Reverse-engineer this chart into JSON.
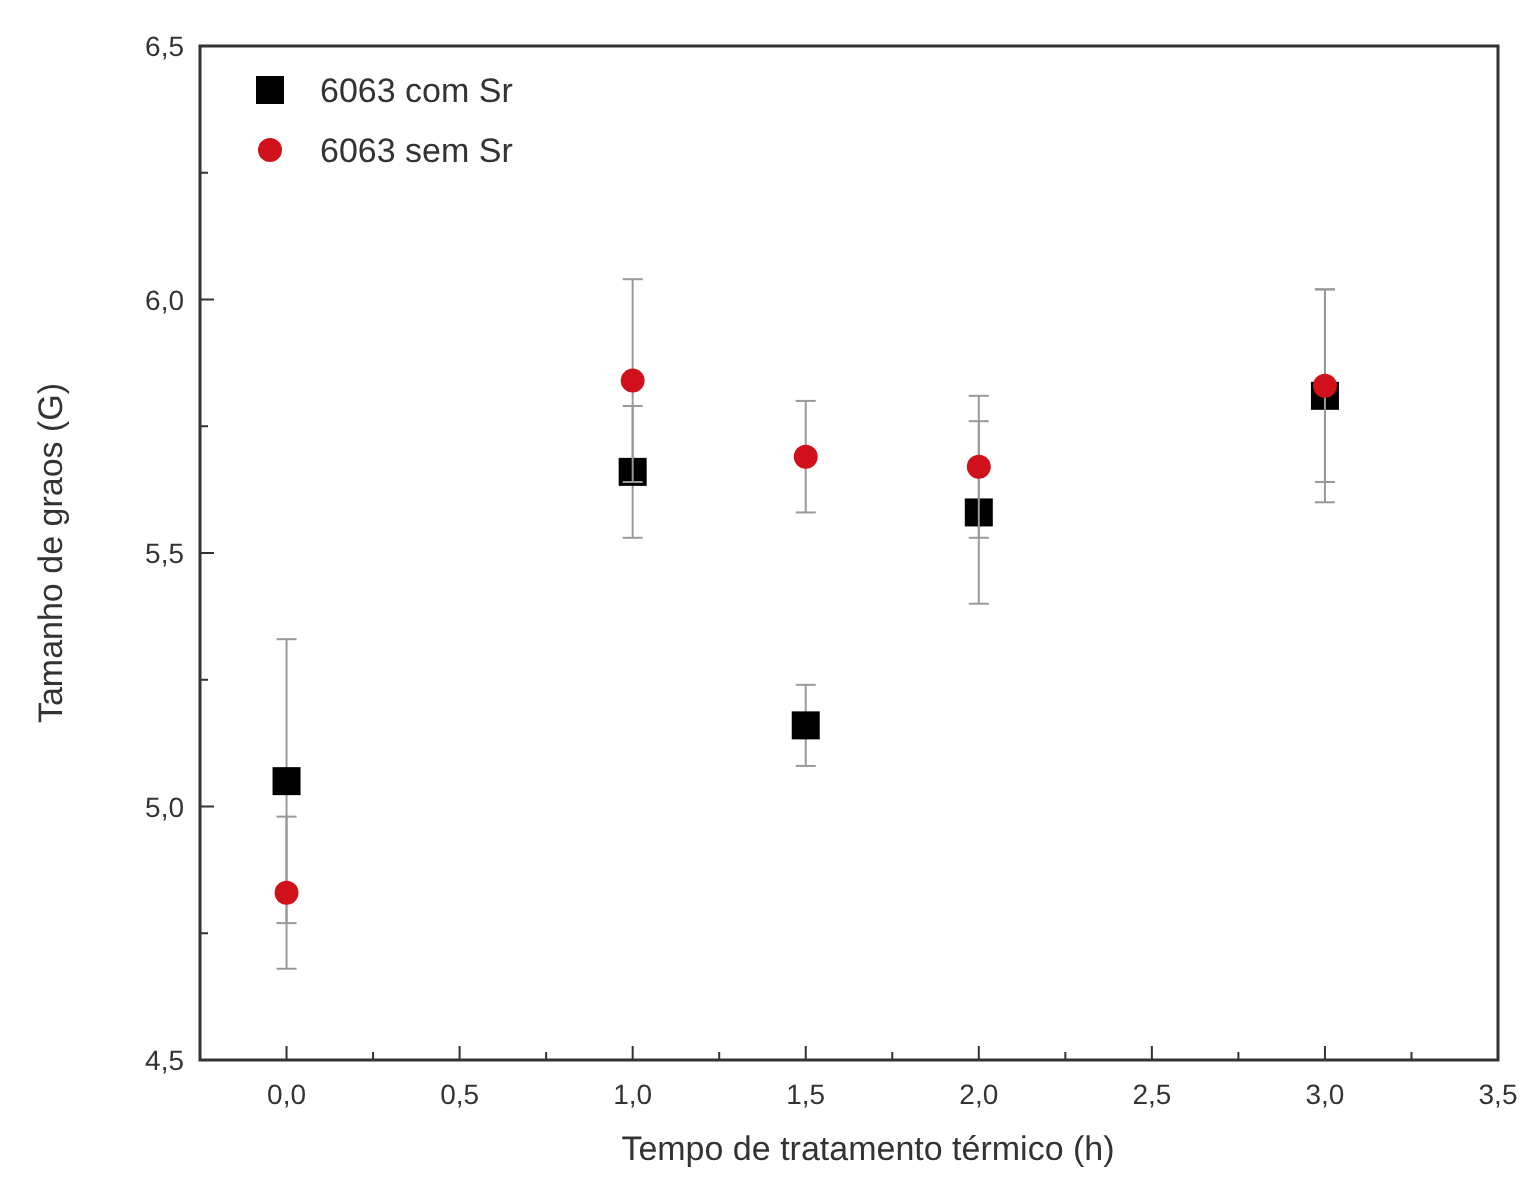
{
  "chart_data": {
    "type": "scatter",
    "xlabel": "Tempo de tratamento térmico (h)",
    "ylabel": "Tamanho de graos (G)",
    "xlim": [
      -0.25,
      3.5
    ],
    "ylim": [
      4.5,
      6.5
    ],
    "xticks": [
      {
        "value": 0,
        "label": "0,0"
      },
      {
        "value": 0.25,
        "label": null
      },
      {
        "value": 0.5,
        "label": "0,5"
      },
      {
        "value": 0.75,
        "label": null
      },
      {
        "value": 1,
        "label": "1,0"
      },
      {
        "value": 1.25,
        "label": null
      },
      {
        "value": 1.5,
        "label": "1,5"
      },
      {
        "value": 1.75,
        "label": null
      },
      {
        "value": 2,
        "label": "2,0"
      },
      {
        "value": 2.25,
        "label": null
      },
      {
        "value": 2.5,
        "label": "2,5"
      },
      {
        "value": 2.75,
        "label": null
      },
      {
        "value": 3,
        "label": "3,0"
      },
      {
        "value": 3.25,
        "label": null
      },
      {
        "value": 3.5,
        "label": "3,5"
      }
    ],
    "yticks": [
      {
        "value": 4.5,
        "label": "4,5"
      },
      {
        "value": 4.75,
        "label": null
      },
      {
        "value": 5,
        "label": "5,0"
      },
      {
        "value": 5.25,
        "label": null
      },
      {
        "value": 5.5,
        "label": "5,5"
      },
      {
        "value": 5.75,
        "label": null
      },
      {
        "value": 6,
        "label": "6,0"
      },
      {
        "value": 6.25,
        "label": null
      },
      {
        "value": 6.5,
        "label": "6,5"
      }
    ],
    "legend": "top left",
    "grid": false,
    "series": [
      {
        "name": "6063 com Sr",
        "color": "#000000",
        "marker": "square",
        "x": [
          0,
          1,
          1.5,
          2,
          3
        ],
        "values": [
          5.05,
          5.66,
          5.16,
          5.58,
          5.81
        ],
        "errors": [
          [
            4.77,
            5.33
          ],
          [
            5.53,
            5.79
          ],
          [
            5.08,
            5.24
          ],
          [
            5.4,
            5.76
          ],
          [
            5.6,
            6.02
          ]
        ]
      },
      {
        "name": "6063 sem Sr",
        "color": "#d0101a",
        "marker": "circle",
        "x": [
          0,
          1,
          1.5,
          2,
          3
        ],
        "values": [
          4.83,
          5.84,
          5.69,
          5.67,
          5.83
        ],
        "errors": [
          [
            4.68,
            4.98
          ],
          [
            5.64,
            6.04
          ],
          [
            5.58,
            5.8
          ],
          [
            5.53,
            5.81
          ],
          [
            5.64,
            6.02
          ]
        ]
      }
    ]
  }
}
